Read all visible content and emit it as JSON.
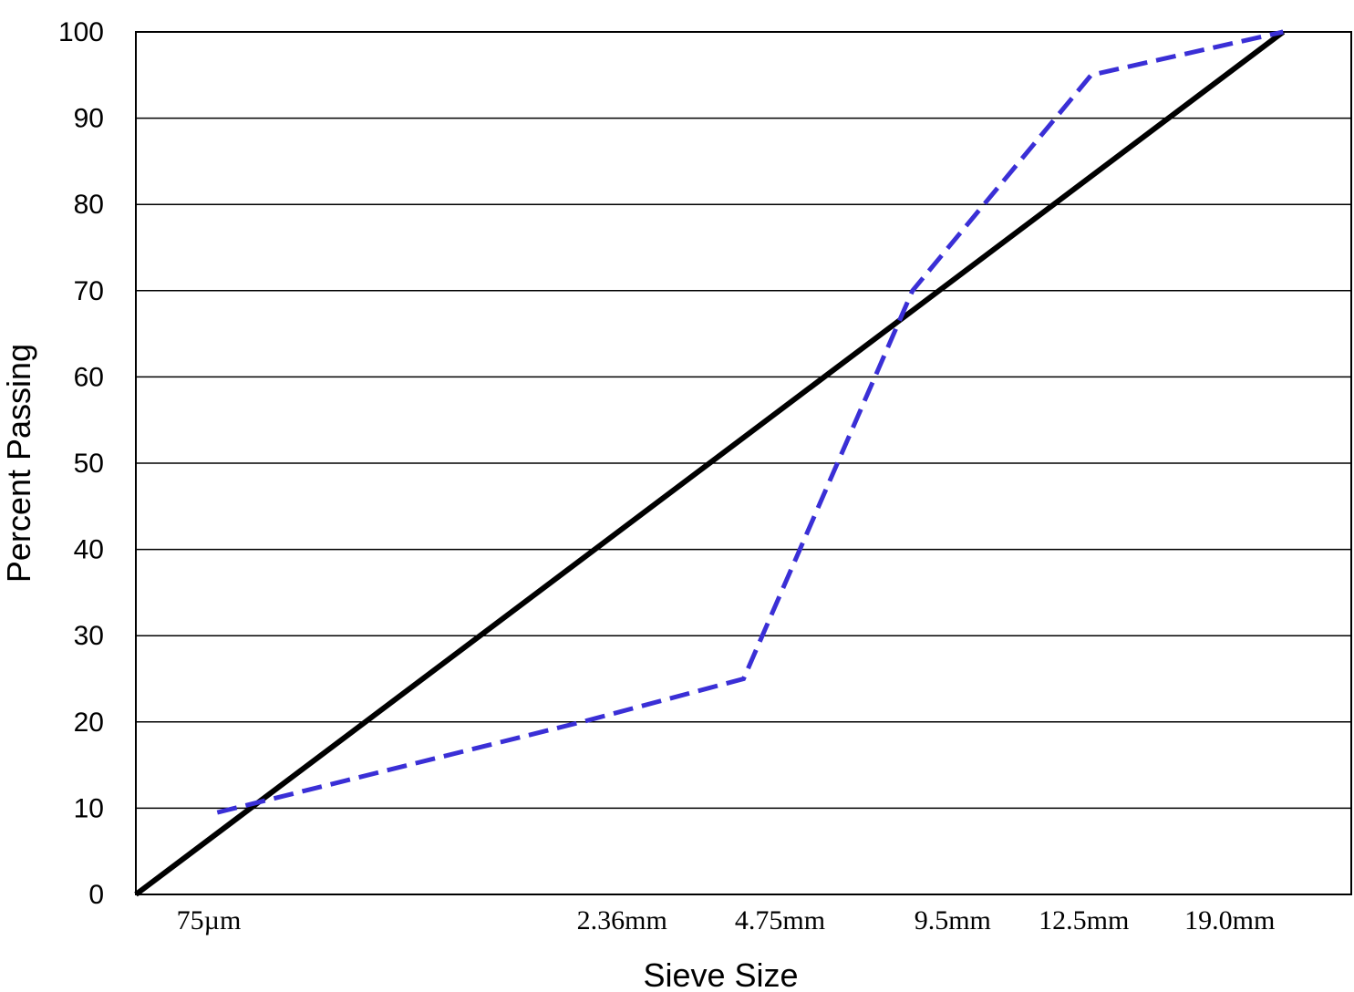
{
  "chart_data": {
    "type": "line",
    "title": "",
    "xlabel": "Sieve Size",
    "ylabel": "Percent Passing",
    "ylim": [
      0,
      100
    ],
    "yticks": [
      0,
      10,
      20,
      30,
      40,
      50,
      60,
      70,
      80,
      90,
      100
    ],
    "grid": "horizontal",
    "legend": "none",
    "x_ticks": [
      {
        "label": "75µm",
        "value": 0.6
      },
      {
        "label": "2.36mm",
        "value": 4.0
      },
      {
        "label": "4.75mm",
        "value": 5.3
      },
      {
        "label": "9.5mm",
        "value": 6.72
      },
      {
        "label": "12.5mm",
        "value": 7.8
      },
      {
        "label": "19.0mm",
        "value": 9.0
      }
    ],
    "xlim": [
      0,
      10
    ],
    "series": [
      {
        "name": "",
        "style": "solid",
        "color": "#000000",
        "points": [
          {
            "x": 0.0,
            "y": 0
          },
          {
            "x": 9.44,
            "y": 100
          }
        ]
      },
      {
        "name": "",
        "style": "dashed",
        "color": "#3a2fd6",
        "points": [
          {
            "x": 0.67,
            "y": 9.5
          },
          {
            "x": 3.67,
            "y": 20
          },
          {
            "x": 5.0,
            "y": 25
          },
          {
            "x": 6.39,
            "y": 70
          },
          {
            "x": 7.86,
            "y": 95
          },
          {
            "x": 9.44,
            "y": 100
          }
        ]
      }
    ]
  }
}
